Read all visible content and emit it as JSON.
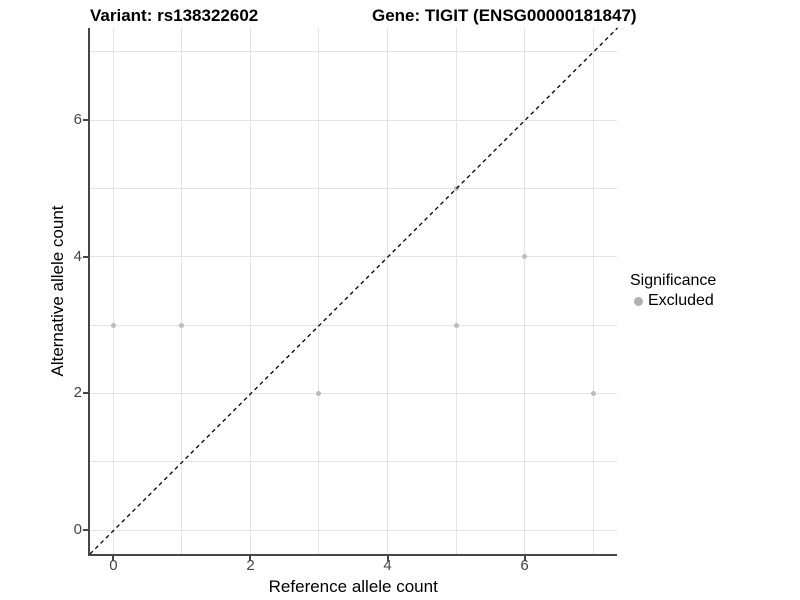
{
  "chart_data": {
    "type": "scatter",
    "titles": {
      "left": "Variant: rs138322602",
      "right": "Gene: TIGIT (ENSG00000181847)"
    },
    "xlabel": "Reference allele count",
    "ylabel": "Alternative allele count",
    "xlim": [
      -0.35,
      7.35
    ],
    "ylim": [
      -0.35,
      7.35
    ],
    "x_ticks": [
      0,
      2,
      4,
      6
    ],
    "y_ticks": [
      0,
      2,
      4,
      6
    ],
    "x_grid": [
      0,
      1,
      2,
      3,
      4,
      5,
      6,
      7
    ],
    "y_grid": [
      0,
      1,
      2,
      3,
      4,
      5,
      6,
      7
    ],
    "grid": true,
    "legend_position": "right",
    "series": [
      {
        "name": "Excluded",
        "color": "#bdbdbd",
        "points": [
          {
            "x": 0,
            "y": 3
          },
          {
            "x": 1,
            "y": 3
          },
          {
            "x": 3,
            "y": 2
          },
          {
            "x": 5,
            "y": 3
          },
          {
            "x": 5,
            "y": 5
          },
          {
            "x": 6,
            "y": 4
          },
          {
            "x": 7,
            "y": 2
          }
        ]
      }
    ],
    "identity_line": {
      "style": "dashed",
      "color": "#000000",
      "from": {
        "x": -0.35,
        "y": -0.35
      },
      "to": {
        "x": 7.35,
        "y": 7.35
      }
    },
    "legend": {
      "title": "Significance",
      "items": [
        {
          "label": "Excluded",
          "color": "#b0b0b0"
        }
      ]
    },
    "colors": {
      "grid": "#e4e4e4",
      "axis_line": "#464646",
      "tick_text": "#454545"
    }
  }
}
